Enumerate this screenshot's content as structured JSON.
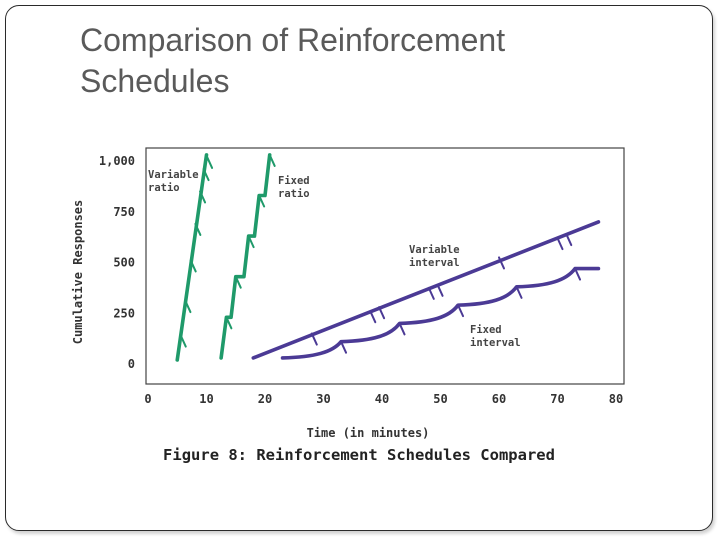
{
  "slide": {
    "title": "Comparison of Reinforcement Schedules"
  },
  "colors": {
    "ratio": "#1f9a6a",
    "interval": "#4b3a95",
    "axis": "#444444",
    "text": "#333333"
  },
  "chart_data": {
    "type": "line",
    "caption": "Figure 8: Reinforcement Schedules Compared",
    "xlabel": "Time (in minutes)",
    "ylabel": "Cumulative Responses",
    "xlim": [
      0,
      80
    ],
    "ylim": [
      0,
      1000
    ],
    "x_ticks": [
      "0",
      "10",
      "20",
      "30",
      "40",
      "50",
      "60",
      "70",
      "80"
    ],
    "y_ticks": [
      "0",
      "250",
      "500",
      "750",
      "1,000"
    ],
    "series": [
      {
        "name": "Variable ratio",
        "label_lines": [
          "Variable",
          "ratio"
        ],
        "color": "#1f9a6a",
        "points": [
          [
            5,
            20
          ],
          [
            10,
            1030
          ]
        ],
        "marks": [
          [
            5.6,
            140
          ],
          [
            6.4,
            310
          ],
          [
            7.3,
            510
          ],
          [
            8.1,
            690
          ],
          [
            8.9,
            850
          ],
          [
            9.5,
            960
          ],
          [
            10.1,
            1020
          ]
        ]
      },
      {
        "name": "Fixed ratio",
        "label_lines": [
          "Fixed",
          "ratio"
        ],
        "color": "#1f9a6a",
        "points": [
          [
            12.5,
            30
          ],
          [
            13.4,
            230
          ],
          [
            14.2,
            230
          ],
          [
            15,
            430
          ],
          [
            16.4,
            430
          ],
          [
            17.2,
            630
          ],
          [
            18.2,
            630
          ],
          [
            19,
            830
          ],
          [
            20,
            830
          ],
          [
            20.8,
            1030
          ]
        ],
        "marks": [
          [
            13.4,
            230
          ],
          [
            15,
            430
          ],
          [
            17.2,
            630
          ],
          [
            19,
            830
          ],
          [
            20.8,
            1030
          ]
        ]
      },
      {
        "name": "Variable interval",
        "label_lines": [
          "Variable",
          "interval"
        ],
        "color": "#4b3a95",
        "points": [
          [
            18,
            30
          ],
          [
            77,
            700
          ]
        ],
        "marks": [
          [
            28,
            150
          ],
          [
            38,
            260
          ],
          [
            39.5,
            280
          ],
          [
            48,
            375
          ],
          [
            49.5,
            390
          ],
          [
            60,
            525
          ],
          [
            70,
            620
          ],
          [
            71.5,
            640
          ]
        ]
      },
      {
        "name": "Fixed interval",
        "label_lines": [
          "Fixed",
          "interval"
        ],
        "color": "#4b3a95",
        "points": [
          [
            23,
            30
          ],
          [
            33,
            110
          ],
          [
            43,
            200
          ],
          [
            53,
            290
          ],
          [
            63,
            380
          ],
          [
            73,
            470
          ],
          [
            77,
            470
          ]
        ],
        "marks": [
          [
            33,
            110
          ],
          [
            43,
            200
          ],
          [
            53,
            290
          ],
          [
            63,
            380
          ],
          [
            73,
            470
          ]
        ]
      }
    ]
  }
}
